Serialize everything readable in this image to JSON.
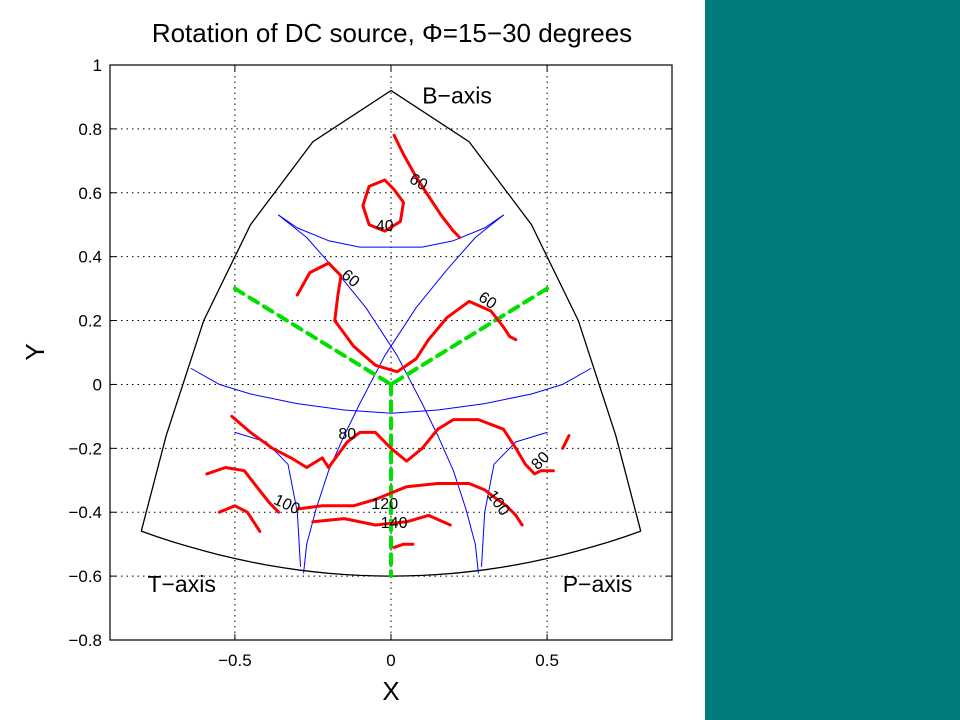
{
  "theme": {
    "panel_color": "#007b7b",
    "contour_color": "#ff0000",
    "nodal_color": "#0000ff",
    "axis_line_color": "#00e000"
  },
  "chart_data": {
    "type": "contour",
    "title": "Rotation of DC source, Φ=15−30 degrees",
    "xlabel": "X",
    "ylabel": "Y",
    "xlim": [
      -0.9,
      0.9
    ],
    "ylim": [
      -0.8,
      1.0
    ],
    "xticks": [
      -0.5,
      0,
      0.5
    ],
    "yticks": [
      1,
      0.8,
      0.6,
      0.4,
      0.2,
      0,
      -0.2,
      -0.4,
      -0.6,
      -0.8
    ],
    "xtick_labels": [
      "−0.5",
      "0",
      "0.5"
    ],
    "ytick_labels": [
      "1",
      "0.8",
      "0.6",
      "0.4",
      "0.2",
      "0",
      "−0.2",
      "−0.4",
      "−0.6",
      "−0.8"
    ],
    "grid": true,
    "region_labels": [
      {
        "text": "B−axis",
        "x": 0.1,
        "y": 0.88
      },
      {
        "text": "T−axis",
        "x": -0.78,
        "y": -0.65
      },
      {
        "text": "P−axis",
        "x": 0.55,
        "y": -0.65
      }
    ],
    "contour_labels": [
      {
        "text": "60",
        "x": 0.08,
        "y": 0.62,
        "rotate": 30
      },
      {
        "text": "40",
        "x": -0.02,
        "y": 0.48,
        "rotate": 0
      },
      {
        "text": "60",
        "x": -0.14,
        "y": 0.32,
        "rotate": 40
      },
      {
        "text": "60",
        "x": 0.3,
        "y": 0.25,
        "rotate": 35
      },
      {
        "text": "80",
        "x": -0.14,
        "y": -0.17,
        "rotate": 0
      },
      {
        "text": "80",
        "x": 0.49,
        "y": -0.25,
        "rotate": -45
      },
      {
        "text": "100",
        "x": -0.34,
        "y": -0.39,
        "rotate": 25
      },
      {
        "text": "100",
        "x": 0.33,
        "y": -0.38,
        "rotate": 55
      },
      {
        "text": "120",
        "x": -0.02,
        "y": -0.39,
        "rotate": 0
      },
      {
        "text": "140",
        "x": 0.01,
        "y": -0.45,
        "rotate": 0
      }
    ],
    "contours": [
      {
        "level": 60,
        "x": [
          0.01,
          0.04,
          0.08,
          0.12,
          0.16,
          0.2,
          0.22
        ],
        "y": [
          0.78,
          0.72,
          0.65,
          0.59,
          0.53,
          0.48,
          0.46
        ]
      },
      {
        "level": 40,
        "x": [
          -0.02,
          -0.07,
          -0.09,
          -0.07,
          -0.02,
          0.03,
          0.04,
          0.01,
          -0.02
        ],
        "y": [
          0.64,
          0.62,
          0.56,
          0.5,
          0.48,
          0.51,
          0.57,
          0.61,
          0.64
        ]
      },
      {
        "level": 60,
        "x": [
          -0.3,
          -0.26,
          -0.2,
          -0.16,
          -0.17,
          -0.18,
          -0.12,
          -0.05,
          0.02,
          0.08,
          0.12
        ],
        "y": [
          0.28,
          0.35,
          0.38,
          0.34,
          0.28,
          0.2,
          0.12,
          0.06,
          0.04,
          0.08,
          0.14
        ]
      },
      {
        "level": 60,
        "x": [
          0.12,
          0.18,
          0.25,
          0.32,
          0.36,
          0.38,
          0.4
        ],
        "y": [
          0.14,
          0.21,
          0.26,
          0.23,
          0.18,
          0.15,
          0.14
        ]
      },
      {
        "level": 80,
        "x": [
          -0.51,
          -0.45,
          -0.38,
          -0.32,
          -0.27,
          -0.22,
          -0.2
        ],
        "y": [
          -0.1,
          -0.15,
          -0.2,
          -0.23,
          -0.26,
          -0.23,
          -0.26
        ]
      },
      {
        "level": 80,
        "x": [
          -0.2,
          -0.14,
          -0.1,
          -0.05,
          0.0,
          0.05,
          0.1,
          0.15,
          0.2,
          0.28,
          0.36,
          0.4,
          0.43,
          0.46,
          0.48,
          0.52
        ],
        "y": [
          -0.26,
          -0.18,
          -0.15,
          -0.15,
          -0.2,
          -0.24,
          -0.2,
          -0.14,
          -0.11,
          -0.11,
          -0.14,
          -0.2,
          -0.25,
          -0.28,
          -0.27,
          -0.27
        ]
      },
      {
        "level": 80,
        "x": [
          0.55,
          0.57
        ],
        "y": [
          -0.2,
          -0.16
        ]
      },
      {
        "level": 100,
        "x": [
          -0.59,
          -0.53,
          -0.47,
          -0.43,
          -0.39,
          -0.36
        ],
        "y": [
          -0.28,
          -0.26,
          -0.27,
          -0.32,
          -0.37,
          -0.4
        ]
      },
      {
        "level": 100,
        "x": [
          -0.55,
          -0.5,
          -0.46,
          -0.42
        ],
        "y": [
          -0.4,
          -0.38,
          -0.4,
          -0.46
        ]
      },
      {
        "level": 100,
        "x": [
          -0.3,
          -0.22,
          -0.12,
          -0.05,
          0.05,
          0.15,
          0.25,
          0.3,
          0.34,
          0.37,
          0.4,
          0.42
        ],
        "y": [
          -0.39,
          -0.38,
          -0.38,
          -0.36,
          -0.32,
          -0.31,
          -0.31,
          -0.33,
          -0.36,
          -0.38,
          -0.41,
          -0.44
        ]
      },
      {
        "level": 120,
        "x": [
          -0.25,
          -0.15,
          -0.05,
          0.05,
          0.12,
          0.19
        ],
        "y": [
          -0.43,
          -0.42,
          -0.44,
          -0.43,
          -0.41,
          -0.44
        ]
      },
      {
        "level": 140,
        "x": [
          0.01,
          0.04,
          0.07
        ],
        "y": [
          -0.51,
          -0.5,
          -0.5
        ]
      }
    ],
    "nodal_lines": [
      {
        "x": [
          -0.36,
          -0.3,
          -0.2,
          -0.1,
          0.0,
          0.1,
          0.2,
          0.3,
          0.36
        ],
        "y": [
          0.53,
          0.49,
          0.45,
          0.43,
          0.43,
          0.43,
          0.45,
          0.49,
          0.53
        ]
      },
      {
        "x": [
          -0.64,
          -0.55,
          -0.45,
          -0.3,
          -0.15,
          0.0,
          0.15,
          0.3,
          0.45,
          0.55,
          0.64
        ],
        "y": [
          0.05,
          0.0,
          -0.03,
          -0.06,
          -0.08,
          -0.09,
          -0.08,
          -0.06,
          -0.03,
          0.0,
          0.05
        ]
      },
      {
        "x": [
          -0.36,
          -0.27,
          -0.18,
          -0.08,
          0.02,
          0.1,
          0.15,
          0.2,
          0.24,
          0.27,
          0.28
        ],
        "y": [
          0.53,
          0.46,
          0.36,
          0.24,
          0.09,
          -0.06,
          -0.16,
          -0.27,
          -0.39,
          -0.5,
          -0.59
        ]
      },
      {
        "x": [
          0.36,
          0.27,
          0.18,
          0.08,
          -0.02,
          -0.1,
          -0.15,
          -0.2,
          -0.24,
          -0.27,
          -0.28
        ],
        "y": [
          0.53,
          0.46,
          0.36,
          0.24,
          0.09,
          -0.06,
          -0.16,
          -0.27,
          -0.39,
          -0.5,
          -0.59
        ]
      },
      {
        "x": [
          -0.5,
          -0.4,
          -0.33,
          -0.3,
          -0.29
        ],
        "y": [
          -0.15,
          -0.18,
          -0.25,
          -0.4,
          -0.57
        ]
      },
      {
        "x": [
          0.5,
          0.4,
          0.33,
          0.3,
          0.29
        ],
        "y": [
          -0.15,
          -0.18,
          -0.25,
          -0.4,
          -0.57
        ]
      }
    ],
    "axis_lines": [
      {
        "x": [
          -0.5,
          0.0
        ],
        "y": [
          0.3,
          0.0
        ]
      },
      {
        "x": [
          0.5,
          0.0
        ],
        "y": [
          0.3,
          0.0
        ]
      },
      {
        "x": [
          0.0,
          0.0
        ],
        "y": [
          0.0,
          -0.6
        ]
      }
    ]
  }
}
